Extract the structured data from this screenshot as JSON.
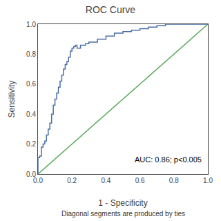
{
  "chart_data": {
    "type": "line",
    "title": "ROC Curve",
    "xlabel": "1 - Specificity",
    "ylabel": "Sensitivity",
    "annotation": "AUC: 0.86; p<0.005",
    "footnote": "Diagonal segments are produced by ties",
    "xlim": [
      0.0,
      1.0
    ],
    "ylim": [
      0.0,
      1.0
    ],
    "xticks": [
      {
        "value": 0.0,
        "label": "0.0"
      },
      0.2,
      0.4,
      0.6,
      0.8,
      {
        "value": 1.0,
        "label": "1.0"
      }
    ],
    "yticks": [
      {
        "value": 0.0,
        "label": "0.0"
      },
      0.2,
      0.4,
      0.6,
      0.8,
      {
        "value": 1.0,
        "label": "1.0"
      }
    ],
    "grid": false,
    "series": [
      {
        "color": "#5aaa5a",
        "x": [
          0,
          1
        ],
        "values": [
          0,
          1
        ]
      },
      {
        "color": "#4a6fa5",
        "x": [
          0.0,
          0.0,
          0.01,
          0.01,
          0.02,
          0.02,
          0.03,
          0.03,
          0.04,
          0.04,
          0.05,
          0.05,
          0.06,
          0.06,
          0.07,
          0.07,
          0.08,
          0.08,
          0.09,
          0.09,
          0.1,
          0.1,
          0.11,
          0.11,
          0.12,
          0.12,
          0.13,
          0.13,
          0.14,
          0.14,
          0.15,
          0.15,
          0.16,
          0.16,
          0.17,
          0.17,
          0.18,
          0.18,
          0.19,
          0.19,
          0.2,
          0.2,
          0.21,
          0.21,
          0.22,
          0.22,
          0.23,
          0.23,
          0.25,
          0.25,
          0.28,
          0.28,
          0.3,
          0.3,
          0.35,
          0.35,
          0.4,
          0.4,
          0.45,
          0.45,
          0.5,
          0.5,
          0.55,
          0.55,
          0.6,
          0.6,
          0.65,
          0.65,
          0.7,
          0.7,
          0.75,
          0.75,
          0.8,
          0.8,
          0.9,
          0.9,
          1.0
        ],
        "values": [
          0.0,
          0.11,
          0.11,
          0.12,
          0.12,
          0.18,
          0.18,
          0.2,
          0.2,
          0.22,
          0.22,
          0.26,
          0.26,
          0.3,
          0.3,
          0.34,
          0.34,
          0.4,
          0.4,
          0.46,
          0.46,
          0.5,
          0.5,
          0.54,
          0.54,
          0.58,
          0.58,
          0.62,
          0.62,
          0.66,
          0.66,
          0.7,
          0.7,
          0.73,
          0.73,
          0.75,
          0.75,
          0.78,
          0.78,
          0.82,
          0.82,
          0.84,
          0.84,
          0.85,
          0.85,
          0.86,
          0.86,
          0.84,
          0.84,
          0.86,
          0.86,
          0.87,
          0.87,
          0.88,
          0.88,
          0.9,
          0.9,
          0.92,
          0.92,
          0.94,
          0.94,
          0.95,
          0.95,
          0.96,
          0.96,
          0.97,
          0.97,
          0.98,
          0.98,
          0.99,
          0.99,
          1.0,
          1.0,
          1.0,
          1.0,
          1.0,
          1.0
        ]
      }
    ]
  }
}
